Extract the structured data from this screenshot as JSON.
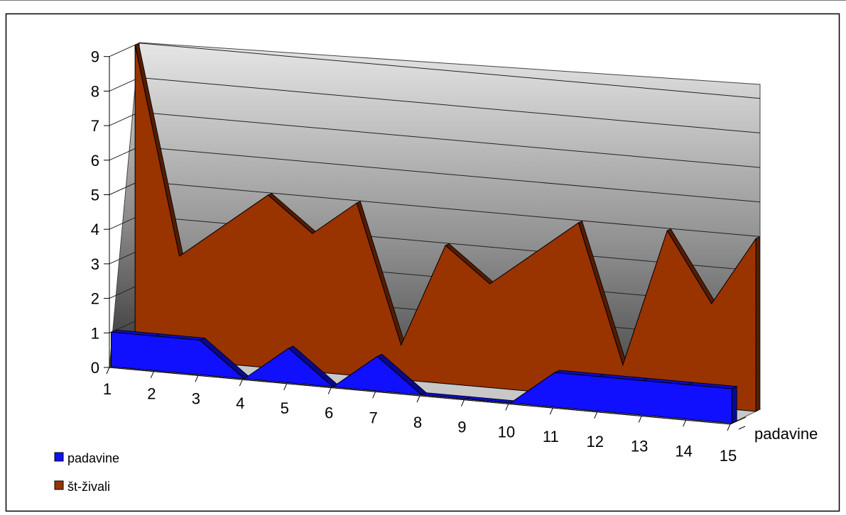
{
  "chart_data": {
    "type": "area",
    "view": "3d",
    "categories": [
      "1",
      "2",
      "3",
      "4",
      "5",
      "6",
      "7",
      "8",
      "9",
      "10",
      "11",
      "12",
      "13",
      "14",
      "15"
    ],
    "yticks": [
      "0",
      "1",
      "2",
      "3",
      "4",
      "5",
      "6",
      "7",
      "8",
      "9"
    ],
    "ylim": [
      0,
      9
    ],
    "depth_axis_labels": [
      "padavine"
    ],
    "grid": true,
    "legend_position": "bottom-left",
    "series": [
      {
        "name": "padavine",
        "color": "#1010ff",
        "values": [
          1,
          1,
          1,
          0,
          1,
          0,
          1,
          0,
          0,
          0,
          1,
          1,
          1,
          1,
          1
        ]
      },
      {
        "name": "št-živali",
        "color": "#993300",
        "values": [
          9,
          3,
          4,
          5,
          4,
          5,
          1,
          4,
          3,
          4,
          5,
          1,
          5,
          3,
          5
        ]
      }
    ]
  }
}
